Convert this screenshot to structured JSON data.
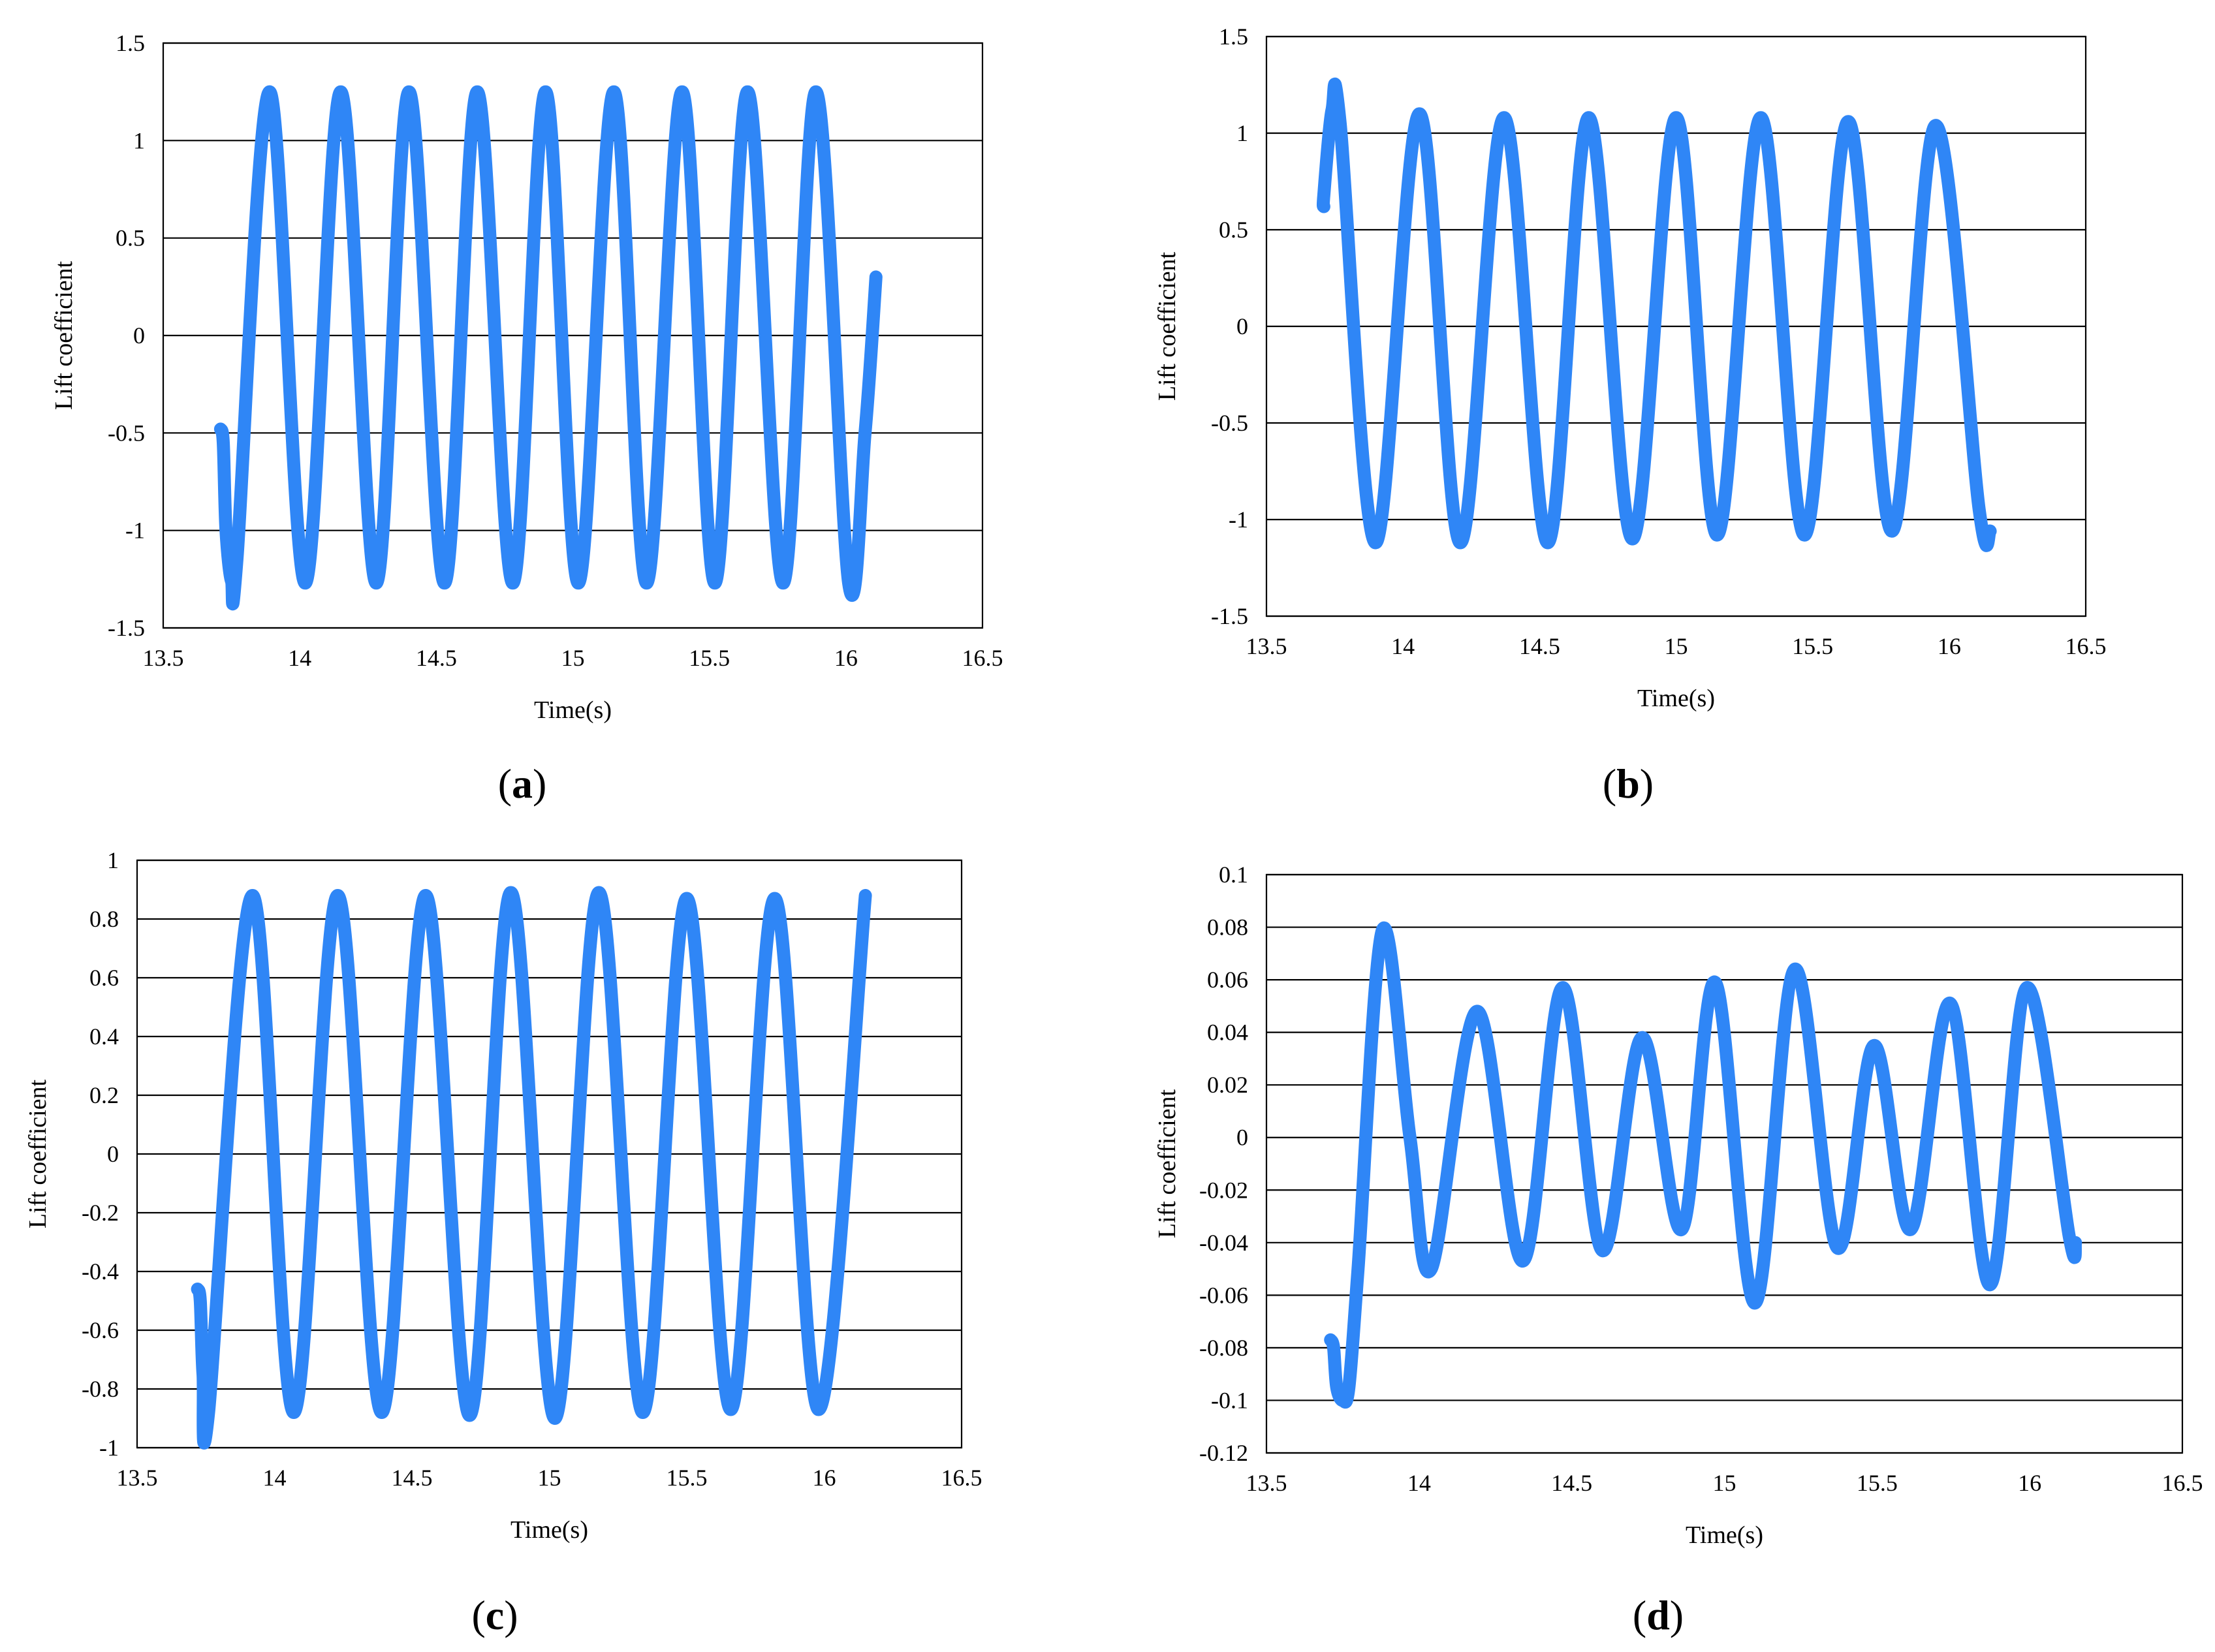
{
  "figure": {
    "charts": [
      {
        "caption_letter": "a",
        "ylim": [
          -1.5,
          1.5
        ],
        "y_ticks": [
          1.5,
          1,
          0.5,
          0,
          -0.5,
          -1,
          -1.5
        ]
      },
      {
        "caption_letter": "b",
        "ylim": [
          -1.5,
          1.5
        ],
        "y_ticks": [
          1.5,
          1,
          0.5,
          0,
          -0.5,
          -1,
          -1.5
        ]
      },
      {
        "caption_letter": "c",
        "ylim": [
          -1,
          1
        ],
        "y_ticks": [
          1,
          0.8,
          0.6,
          0.4,
          0.2,
          0,
          -0.2,
          -0.4,
          -0.6,
          -0.8,
          -1
        ]
      },
      {
        "caption_letter": "d",
        "ylim": [
          -0.12,
          0.1
        ],
        "y_ticks": [
          0.1,
          0.08,
          0.06,
          0.04,
          0.02,
          0,
          -0.02,
          -0.04,
          -0.06,
          -0.08,
          -0.1,
          -0.12
        ]
      }
    ]
  },
  "chart_data": [
    {
      "type": "line",
      "title": "",
      "xlabel": "Time(s)",
      "ylabel": "Lift  coefficient",
      "xlim": [
        13.5,
        16.5
      ],
      "ylim": [
        -1.5,
        1.5
      ],
      "x_ticks": [
        13.5,
        14,
        14.5,
        15,
        15.5,
        16,
        16.5
      ],
      "y_ticks": [
        -1.5,
        -1,
        -0.5,
        0,
        0.5,
        1,
        1.5
      ],
      "grid": true,
      "series": [
        {
          "name": "Lift coefficient",
          "color": "#2f86f6",
          "x": [
            13.71,
            13.72,
            13.73,
            13.75,
            13.77,
            13.89,
            14.02,
            14.15,
            14.28,
            14.4,
            14.53,
            14.65,
            14.78,
            14.9,
            15.02,
            15.15,
            15.27,
            15.4,
            15.52,
            15.64,
            15.77,
            15.89,
            16.01,
            16.07,
            16.11
          ],
          "y": [
            -0.48,
            -0.55,
            -1.0,
            -1.26,
            -1.15,
            1.25,
            -1.27,
            1.25,
            -1.27,
            1.25,
            -1.27,
            1.25,
            -1.27,
            1.25,
            -1.27,
            1.25,
            -1.27,
            1.25,
            -1.27,
            1.25,
            -1.27,
            1.25,
            -1.27,
            -0.5,
            0.3
          ]
        }
      ]
    },
    {
      "type": "line",
      "title": "",
      "xlabel": "Time(s)",
      "ylabel": "Lift  coefficient",
      "xlim": [
        13.5,
        16.5
      ],
      "ylim": [
        -1.5,
        1.5
      ],
      "x_ticks": [
        13.5,
        14,
        14.5,
        15,
        15.5,
        16,
        16.5
      ],
      "y_ticks": [
        -1.5,
        -1,
        -0.5,
        0,
        0.5,
        1,
        1.5
      ],
      "grid": true,
      "series": [
        {
          "name": "Lift coefficient",
          "color": "#2f86f6",
          "x": [
            13.71,
            13.71,
            13.74,
            13.77,
            13.9,
            14.06,
            14.21,
            14.37,
            14.53,
            14.68,
            14.84,
            15.0,
            15.15,
            15.31,
            15.47,
            15.63,
            15.79,
            15.95,
            16.11,
            16.15
          ],
          "y": [
            0.62,
            0.68,
            1.12,
            1.05,
            -1.12,
            1.1,
            -1.12,
            1.08,
            -1.12,
            1.08,
            -1.1,
            1.08,
            -1.08,
            1.08,
            -1.08,
            1.06,
            -1.06,
            1.04,
            -0.95,
            -1.06
          ]
        }
      ]
    },
    {
      "type": "line",
      "title": "",
      "xlabel": "Time(s)",
      "ylabel": "Lift  coefficient",
      "xlim": [
        13.5,
        16.5
      ],
      "ylim": [
        -1,
        1
      ],
      "x_ticks": [
        13.5,
        14,
        14.5,
        15,
        15.5,
        16,
        16.5
      ],
      "y_ticks": [
        -1,
        -0.8,
        -0.6,
        -0.4,
        -0.2,
        0,
        0.2,
        0.4,
        0.6,
        0.8,
        1
      ],
      "grid": true,
      "series": [
        {
          "name": "Lift coefficient",
          "color": "#2f86f6",
          "x": [
            13.72,
            13.73,
            13.74,
            13.76,
            13.92,
            14.07,
            14.23,
            14.39,
            14.55,
            14.71,
            14.86,
            15.02,
            15.18,
            15.34,
            15.5,
            15.66,
            15.82,
            15.98,
            16.15
          ],
          "y": [
            -0.46,
            -0.5,
            -0.75,
            -0.88,
            0.88,
            -0.88,
            0.88,
            -0.88,
            0.88,
            -0.89,
            0.89,
            -0.9,
            0.89,
            -0.88,
            0.87,
            -0.87,
            0.87,
            -0.87,
            0.88
          ]
        }
      ]
    },
    {
      "type": "line",
      "title": "",
      "xlabel": "Time(s)",
      "ylabel": "Lift  coefficient",
      "xlim": [
        13.5,
        16.5
      ],
      "ylim": [
        -0.12,
        0.1
      ],
      "x_ticks": [
        13.5,
        14,
        14.5,
        15,
        15.5,
        16,
        16.5
      ],
      "y_ticks": [
        -0.12,
        -0.1,
        -0.08,
        -0.06,
        -0.04,
        -0.02,
        0,
        0.02,
        0.04,
        0.06,
        0.08,
        0.1
      ],
      "grid": true,
      "series": [
        {
          "name": "Lift coefficient",
          "color": "#2f86f6",
          "x": [
            13.71,
            13.72,
            13.73,
            13.75,
            13.77,
            13.8,
            13.88,
            13.97,
            14.04,
            14.19,
            14.34,
            14.47,
            14.6,
            14.73,
            14.86,
            14.97,
            15.1,
            15.23,
            15.37,
            15.49,
            15.61,
            15.74,
            15.87,
            15.99,
            16.13,
            16.15
          ],
          "y": [
            -0.077,
            -0.08,
            -0.095,
            -0.1,
            -0.095,
            -0.05,
            0.079,
            0.0,
            -0.05,
            0.048,
            -0.047,
            0.057,
            -0.043,
            0.038,
            -0.035,
            0.059,
            -0.063,
            0.064,
            -0.042,
            0.035,
            -0.035,
            0.051,
            -0.056,
            0.057,
            -0.038,
            -0.04
          ]
        }
      ]
    }
  ]
}
